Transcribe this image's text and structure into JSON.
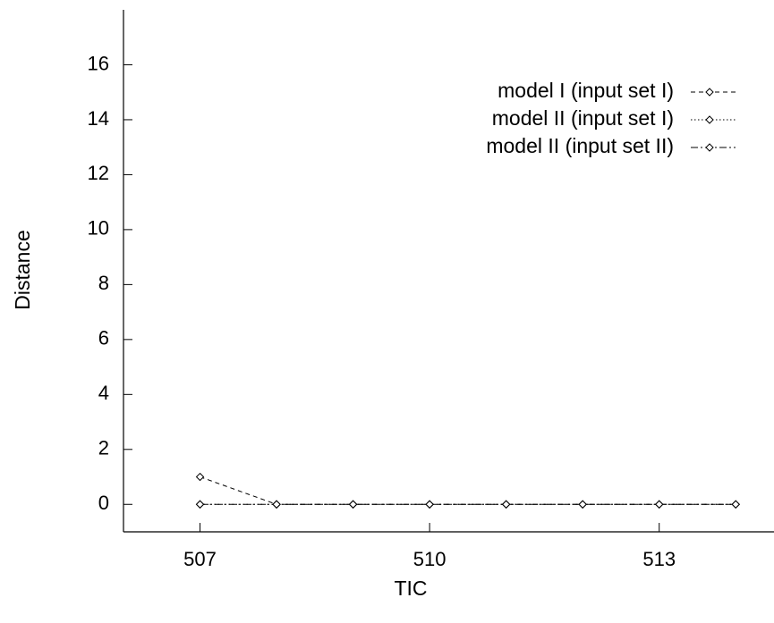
{
  "chart_data": {
    "type": "line",
    "title": "",
    "xlabel": "TIC",
    "ylabel": "Distance",
    "xlim": [
      506,
      514.5
    ],
    "ylim": [
      -1,
      18
    ],
    "x_ticks": [
      507,
      510,
      513
    ],
    "x_tick_labels": [
      "507",
      "510",
      "513"
    ],
    "y_ticks": [
      0,
      2,
      4,
      6,
      8,
      10,
      12,
      14,
      16
    ],
    "y_tick_labels": [
      "0",
      "2",
      "4",
      "6",
      "8",
      "10",
      "12",
      "14",
      "16"
    ],
    "grid": false,
    "legend_position": "top-right",
    "x": [
      507,
      508,
      509,
      510,
      511,
      512,
      513,
      514
    ],
    "series": [
      {
        "name": "model  I (input set  I)",
        "dash": "dashed",
        "values": [
          1,
          0,
          0,
          0,
          0,
          0,
          0,
          0
        ]
      },
      {
        "name": "model II (input set  I)",
        "dash": "dotted",
        "values": [
          0,
          0,
          0,
          0,
          0,
          0,
          0,
          0
        ]
      },
      {
        "name": "model II (input set II)",
        "dash": "dashdot",
        "values": [
          0,
          0,
          0,
          0,
          0,
          0,
          0,
          0
        ]
      }
    ]
  }
}
